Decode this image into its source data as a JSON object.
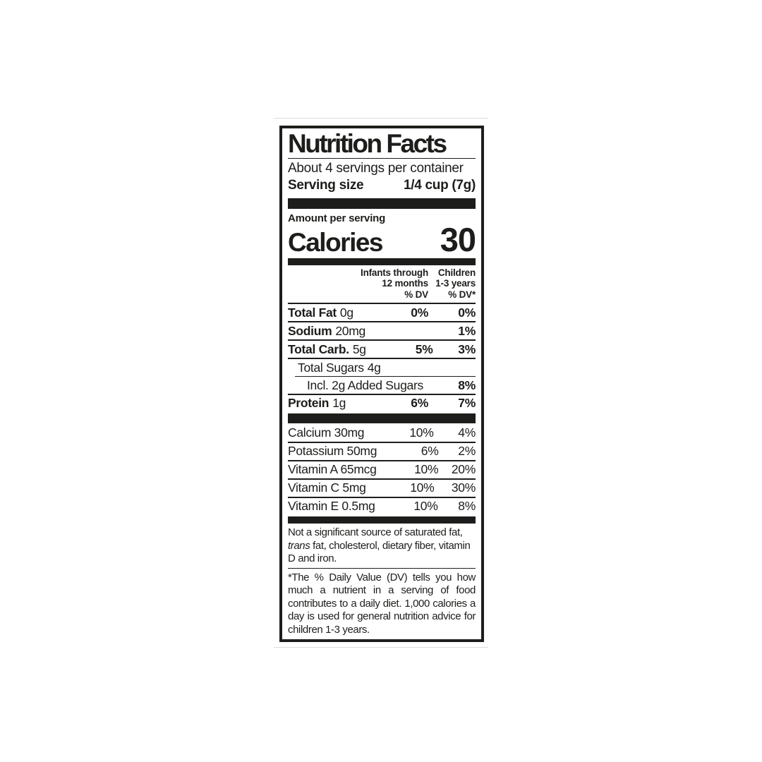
{
  "label": {
    "title": "Nutrition Facts",
    "servings_per_container": "About 4 servings per container",
    "serving_size": {
      "label": "Serving size",
      "value": "1/4 cup (7g)"
    },
    "amount_per_serving": "Amount per serving",
    "calories": {
      "label": "Calories",
      "value": "30"
    },
    "columns": {
      "infants": {
        "line1": "Infants through",
        "line2": "12 months",
        "line3": "% DV"
      },
      "children": {
        "line1": "Children",
        "line2": "1-3 years",
        "line3": "% DV*"
      }
    },
    "nutrients": [
      {
        "name": "Total Fat",
        "amount": "0g",
        "dv_infants": "0%",
        "dv_children": "0%"
      },
      {
        "name": "Sodium",
        "amount": "20mg",
        "dv_infants": "",
        "dv_children": "1%"
      },
      {
        "name": "Total Carb.",
        "amount": "5g",
        "dv_infants": "5%",
        "dv_children": "3%"
      },
      {
        "name": "Total Sugars",
        "amount": "4g",
        "dv_infants": "",
        "dv_children": ""
      },
      {
        "name": "Incl. 2g Added Sugars",
        "amount": "",
        "dv_infants": "",
        "dv_children": "8%"
      },
      {
        "name": "Protein",
        "amount": "1g",
        "dv_infants": "6%",
        "dv_children": "7%"
      }
    ],
    "micronutrients": [
      {
        "name": "Calcium 30mg",
        "dv_infants": "10%",
        "dv_children": "4%"
      },
      {
        "name": "Potassium 50mg",
        "dv_infants": "6%",
        "dv_children": "2%"
      },
      {
        "name": "Vitamin A 65mcg",
        "dv_infants": "10%",
        "dv_children": "20%"
      },
      {
        "name": "Vitamin C 5mg",
        "dv_infants": "10%",
        "dv_children": "30%"
      },
      {
        "name": "Vitamin E 0.5mg",
        "dv_infants": "10%",
        "dv_children": "8%"
      }
    ],
    "footnote_sources": {
      "before_italic": "Not a significant source of saturated fat, ",
      "italic": "trans",
      "after_italic": " fat, cholesterol, dietary fiber, vitamin D and iron."
    },
    "footnote_dv": "*The % Daily Value (DV) tells you how much a nutrient in a serving of food contributes to a daily diet. 1,000 calories a day is used for general nutrition advice for children 1-3 years.",
    "colors": {
      "ink": "#1d1d1b",
      "background": "#ffffff"
    }
  }
}
